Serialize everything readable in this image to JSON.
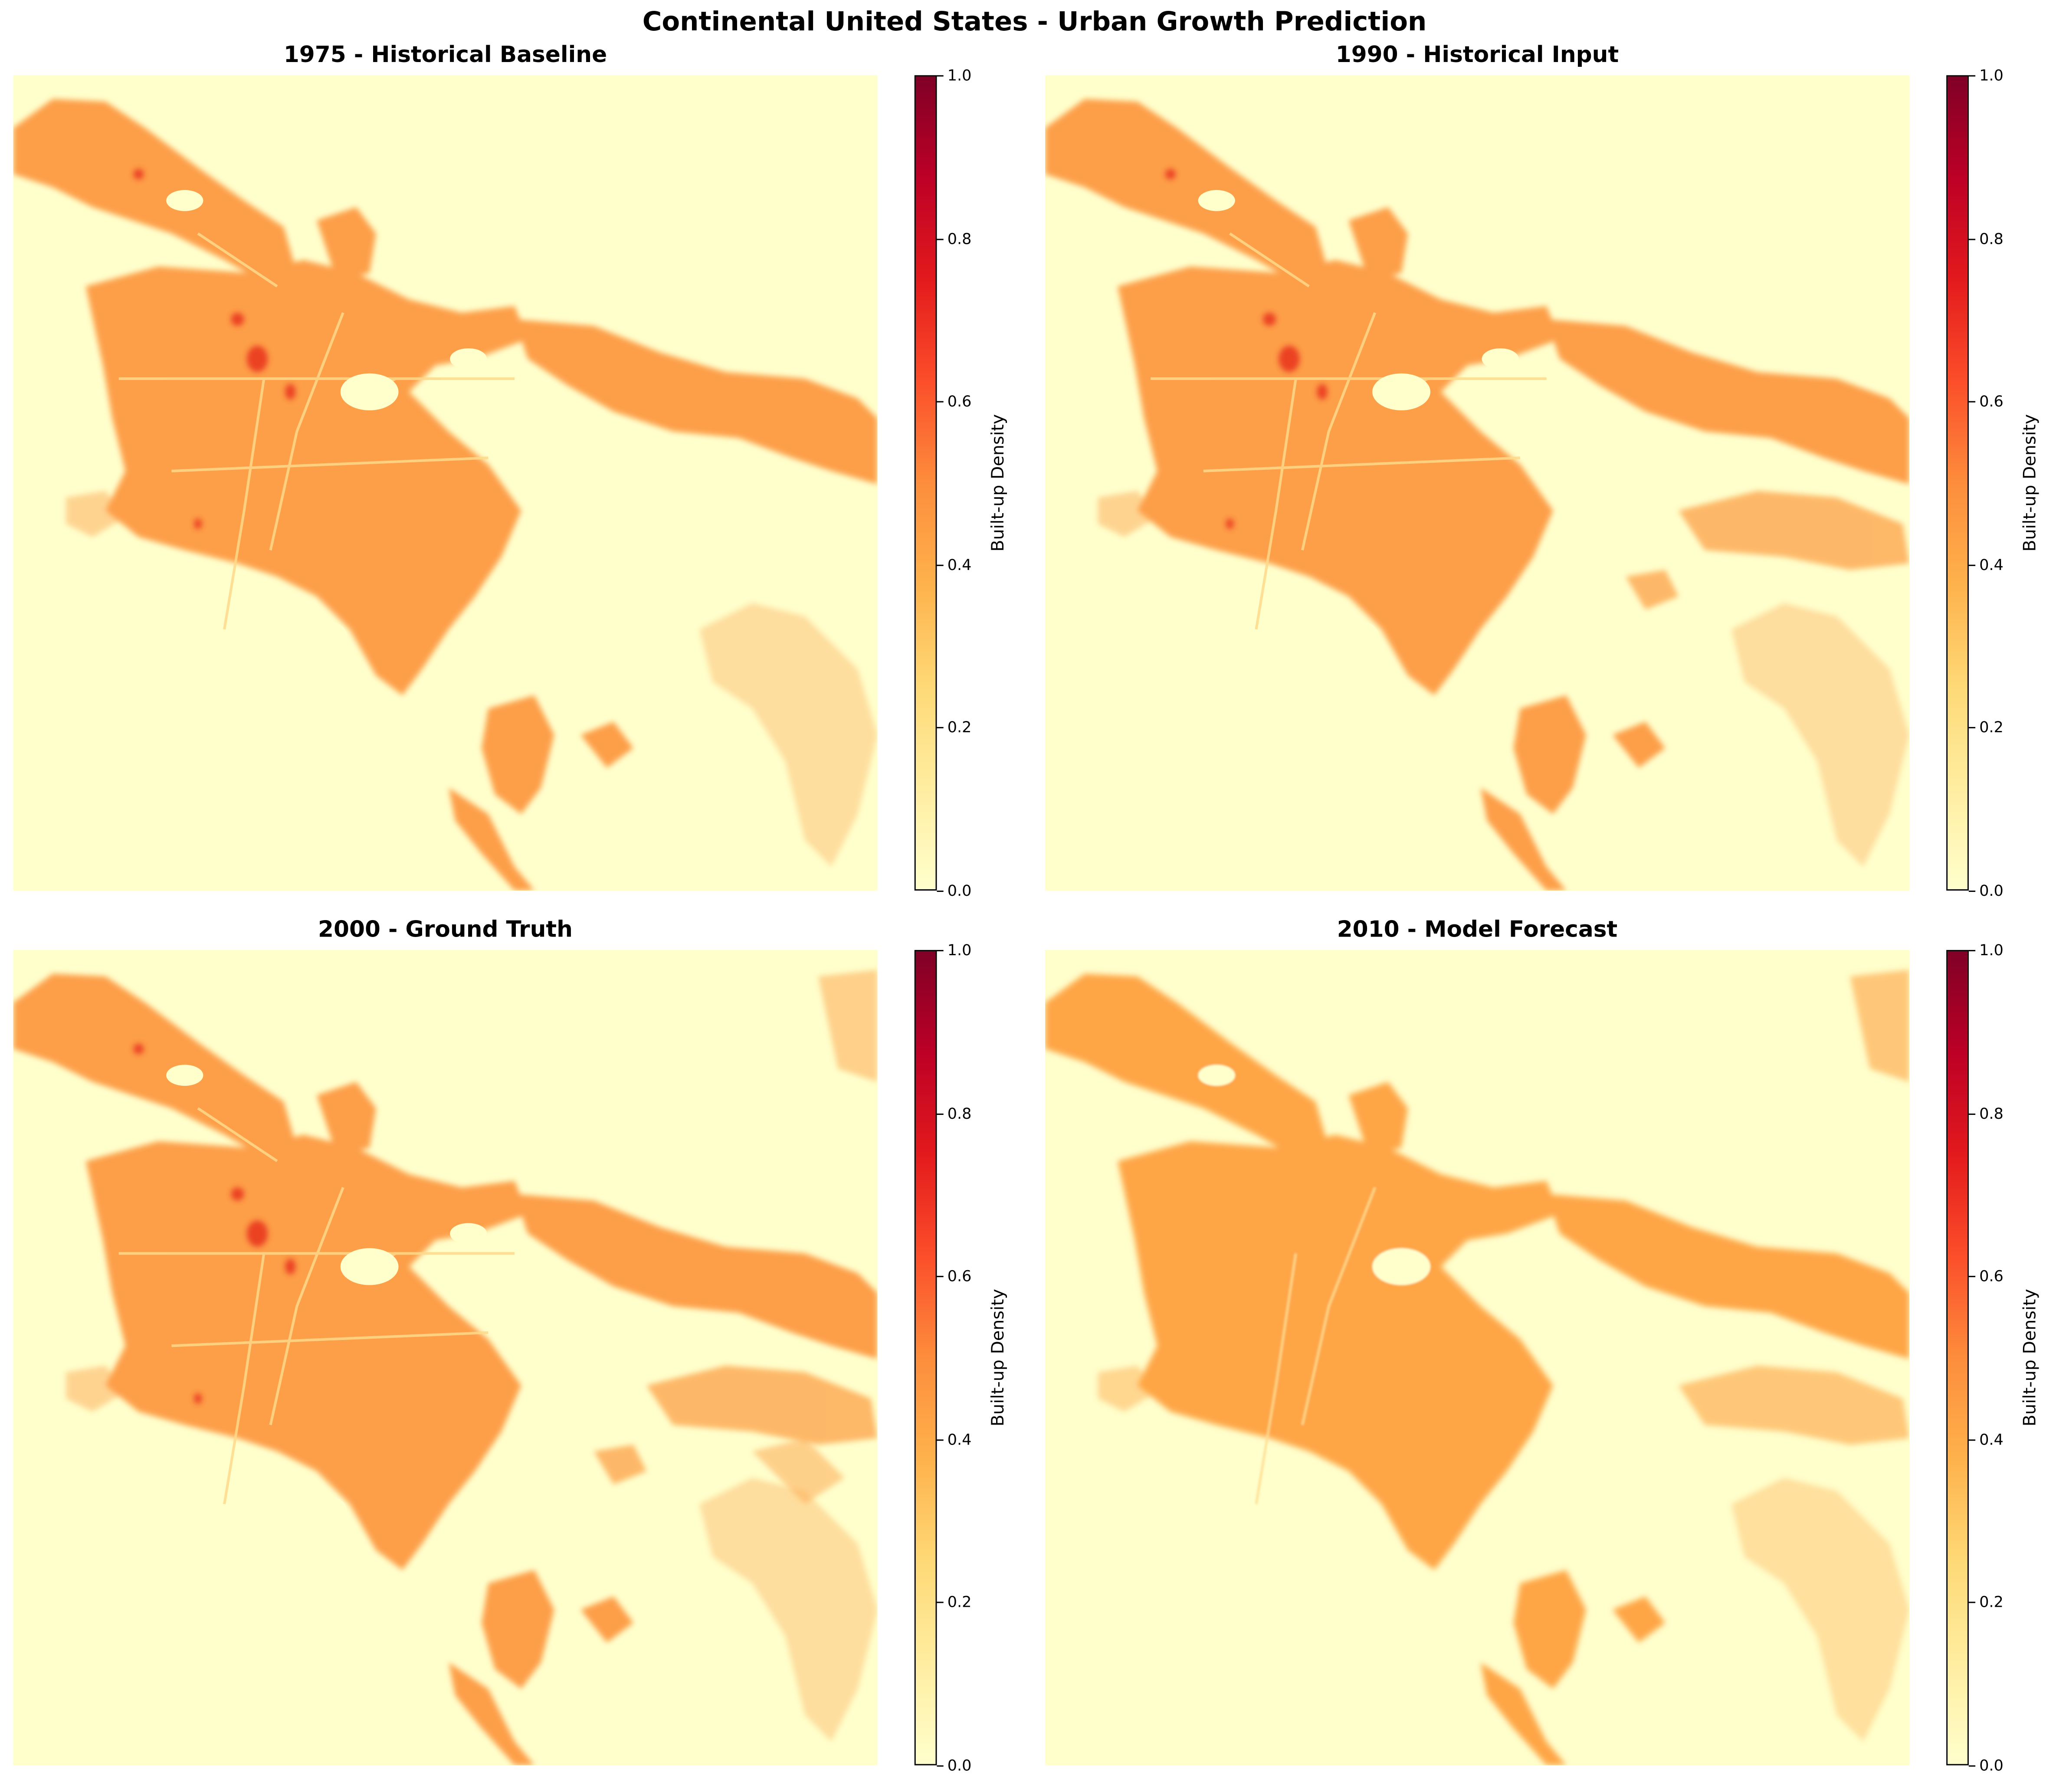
{
  "figure": {
    "suptitle": "Continental United States - Urban Growth Prediction"
  },
  "colormap": {
    "name": "YlOrRd",
    "stops": [
      "#ffffcc",
      "#ffeda0",
      "#fed976",
      "#feb24c",
      "#fd8d3c",
      "#fc4e2a",
      "#e31a1c",
      "#bd0026",
      "#800026"
    ],
    "background_low": "#ffffcc",
    "urban_typical": "#fd8d3c",
    "forecast_typical": "#fea13f"
  },
  "panels": [
    {
      "title": "1975 - Historical Baseline",
      "cbar_label": "Built-up Density",
      "ticks": [
        "0.0",
        "0.2",
        "0.4",
        "0.6",
        "0.8",
        "1.0"
      ]
    },
    {
      "title": "1990 - Historical Input",
      "cbar_label": "Built-up Density",
      "ticks": [
        "0.0",
        "0.2",
        "0.4",
        "0.6",
        "0.8",
        "1.0"
      ]
    },
    {
      "title": "2000 - Ground Truth",
      "cbar_label": "Built-up Density",
      "ticks": [
        "0.0",
        "0.2",
        "0.4",
        "0.6",
        "0.8",
        "1.0"
      ]
    },
    {
      "title": "2010 - Model Forecast",
      "cbar_label": "Built-up Density",
      "ticks": [
        "0.0",
        "0.2",
        "0.4",
        "0.6",
        "0.8",
        "1.0"
      ]
    }
  ],
  "chart_data": [
    {
      "type": "heatmap",
      "title": "1975 - Historical Baseline",
      "colorbar": {
        "label": "Built-up Density",
        "range": [
          0.0,
          1.0
        ],
        "ticks": [
          0.0,
          0.2,
          0.4,
          0.6,
          0.8,
          1.0
        ],
        "cmap": "YlOrRd"
      },
      "axes": "off",
      "description": "Urban footprint concentrated on west coast basin; typical density ~0.45-0.55, hotspots up to ~0.75 near center",
      "typical_urban_density": 0.5,
      "max_density_observed": 0.75
    },
    {
      "type": "heatmap",
      "title": "1990 - Historical Input",
      "colorbar": {
        "label": "Built-up Density",
        "range": [
          0.0,
          1.0
        ],
        "ticks": [
          0.0,
          0.2,
          0.4,
          0.6,
          0.8,
          1.0
        ],
        "cmap": "YlOrRd"
      },
      "axes": "off",
      "description": "Similar extent to 1975 with slight expansion eastward",
      "typical_urban_density": 0.5,
      "max_density_observed": 0.75
    },
    {
      "type": "heatmap",
      "title": "2000 - Ground Truth",
      "colorbar": {
        "label": "Built-up Density",
        "range": [
          0.0,
          1.0
        ],
        "ticks": [
          0.0,
          0.2,
          0.4,
          0.6,
          0.8,
          1.0
        ],
        "cmap": "YlOrRd"
      },
      "axes": "off",
      "description": "Further expansion in eastern valleys and southern coast; hotspots near center",
      "typical_urban_density": 0.5,
      "max_density_observed": 0.8
    },
    {
      "type": "heatmap",
      "title": "2010 - Model Forecast",
      "colorbar": {
        "label": "Built-up Density",
        "range": [
          0.0,
          1.0
        ],
        "ticks": [
          0.0,
          0.2,
          0.4,
          0.6,
          0.8,
          1.0
        ],
        "cmap": "YlOrRd"
      },
      "axes": "off",
      "description": "Smoother predicted field, uniform density ~0.4 across urban core, no high-density hotspots",
      "typical_urban_density": 0.4,
      "max_density_observed": 0.45
    }
  ]
}
